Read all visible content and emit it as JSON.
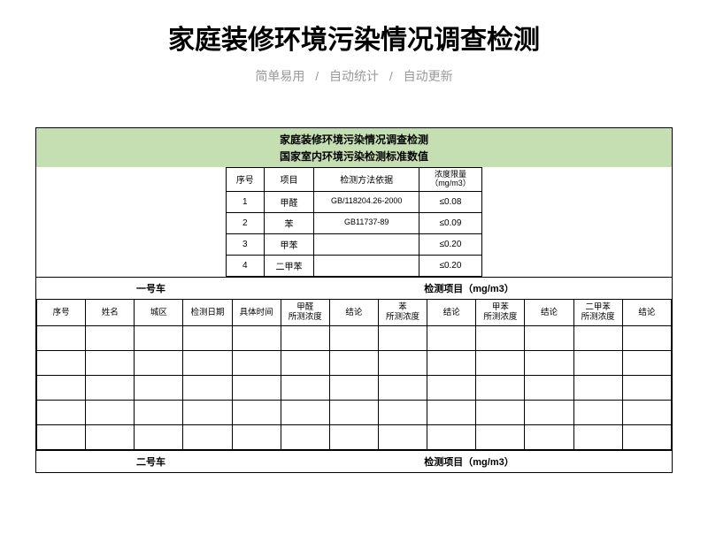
{
  "page": {
    "title": "家庭装修环境污染情况调查检测",
    "subtitle_parts": [
      "简单易用",
      "自动统计",
      "自动更新"
    ],
    "subtitle_sep": "/"
  },
  "sheet": {
    "header_line1": "家庭装修环境污染情况调查检测",
    "header_line2": "国家室内环境污染检测标准数值",
    "header_bg": "#c5dfb3"
  },
  "standards": {
    "columns": [
      "序号",
      "项目",
      "检测方法依据",
      "浓度限量（mg/m3）"
    ],
    "rows": [
      {
        "no": "1",
        "item": "甲醛",
        "method": "GB/118204.26-2000",
        "limit": "≤0.08"
      },
      {
        "no": "2",
        "item": "苯",
        "method": "GB11737-89",
        "limit": "≤0.09"
      },
      {
        "no": "3",
        "item": "甲苯",
        "method": "",
        "limit": "≤0.20"
      },
      {
        "no": "4",
        "item": "二甲苯",
        "method": "",
        "limit": "≤0.20"
      }
    ]
  },
  "section1": {
    "left_label": "一号车",
    "right_label": "检测项目（mg/m3）"
  },
  "section2": {
    "left_label": "二号车",
    "right_label": "检测项目（mg/m3）"
  },
  "detail": {
    "columns": [
      "序号",
      "姓名",
      "城区",
      "检测日期",
      "具体时间",
      "甲醛\n所测浓度",
      "结论",
      "苯\n所测浓度",
      "结论",
      "甲苯\n所测浓度",
      "结论",
      "二甲苯\n所测浓度",
      "结论"
    ],
    "empty_rows": 5
  }
}
